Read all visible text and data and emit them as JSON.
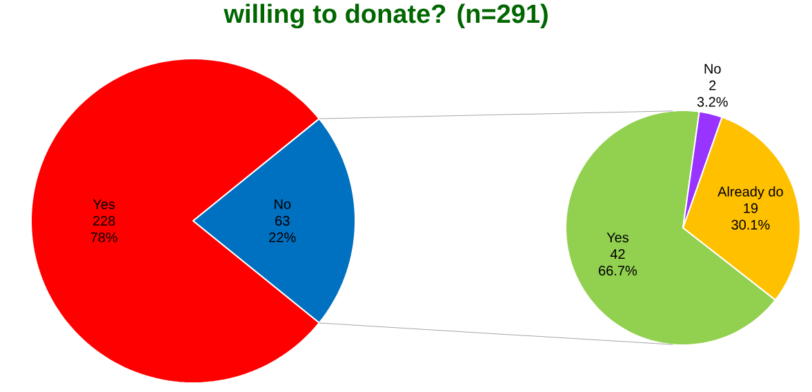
{
  "chart_data": [
    {
      "type": "pie",
      "title": "willing to donate? (n=291)",
      "categories": [
        "Yes",
        "No"
      ],
      "values": [
        228,
        63
      ],
      "colors": [
        "#ff0000",
        "#0070c0"
      ],
      "data_labels": true,
      "annotations": [
        {
          "text": "78%",
          "x": "Yes"
        },
        {
          "text": "22%",
          "x": "No"
        }
      ]
    },
    {
      "type": "pie",
      "categories": [
        "Yes",
        "Already do",
        "No"
      ],
      "values": [
        42,
        19,
        2
      ],
      "colors": [
        "#92d050",
        "#ffc000",
        "#9933ff"
      ],
      "data_labels": true,
      "annotations": [
        {
          "text": "66.7%",
          "x": "Yes"
        },
        {
          "text": "30.1%",
          "x": "Already do"
        },
        {
          "text": "3.2%",
          "x": "No"
        }
      ]
    }
  ]
}
